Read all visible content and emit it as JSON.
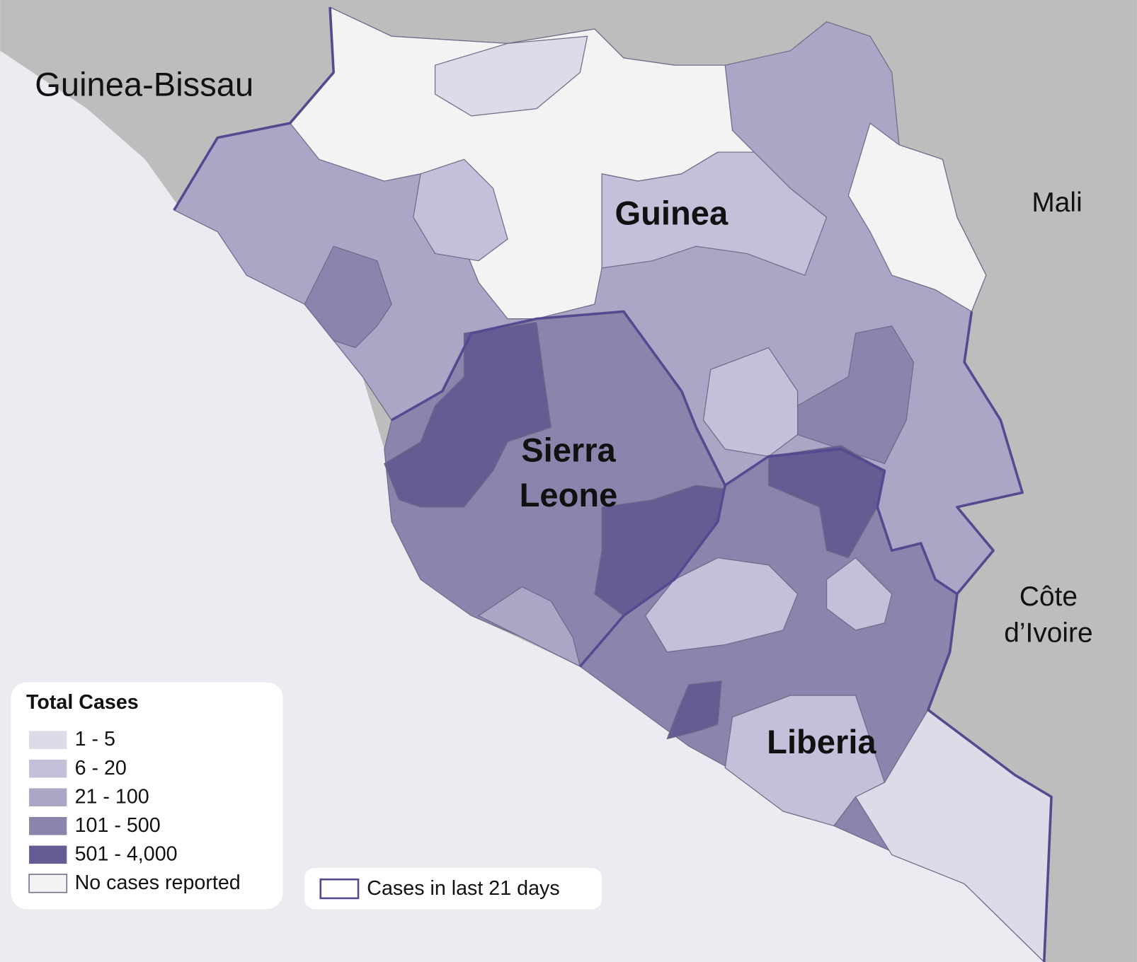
{
  "labels": {
    "guinea_bissau": "Guinea-Bissau",
    "guinea": "Guinea",
    "mali": "Mali",
    "sierra_leone": [
      "Sierra",
      "Leone"
    ],
    "cote_divoire": [
      "Côte",
      "d’Ivoire"
    ],
    "liberia": "Liberia"
  },
  "legend": {
    "title": "Total Cases",
    "items": [
      {
        "label": "1 - 5",
        "color": "#dcdbe8"
      },
      {
        "label": "6 - 20",
        "color": "#c3c1d9"
      },
      {
        "label": "21 - 100",
        "color": "#a9a6c6"
      },
      {
        "label": "101 - 500",
        "color": "#8a85ad"
      },
      {
        "label": "501 - 4,000",
        "color": "#655c94"
      },
      {
        "label": "No cases reported",
        "color": "#f3f3f4"
      }
    ]
  },
  "recent_legend": {
    "label": "Cases in last 21 days",
    "color": "#554a8f"
  }
}
